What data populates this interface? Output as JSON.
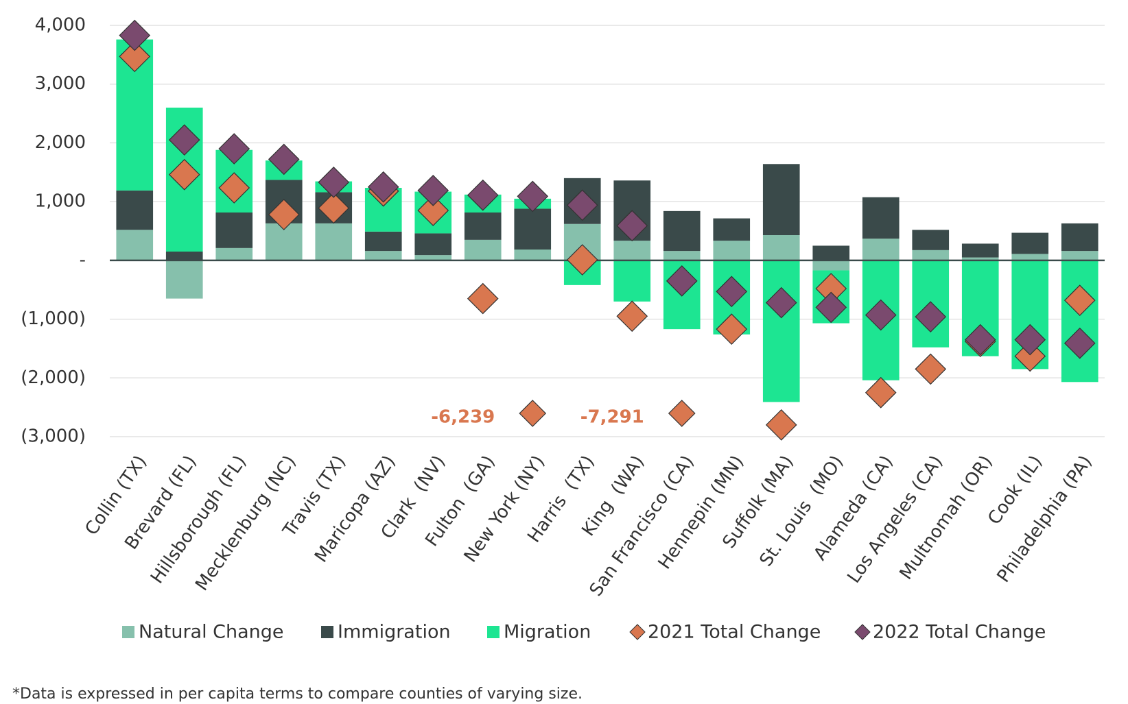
{
  "chart_data": {
    "type": "stacked_bar_marker",
    "categories": [
      "Collin (TX)",
      "Brevard (FL)",
      "Hillsborough (FL)",
      "Mecklenburg (NC)",
      "Travis (TX)",
      "Maricopa (AZ)",
      "Clark  (NV)",
      "Fulton  (GA)",
      "New York (NY)",
      "Harris  (TX)",
      "King  (WA)",
      "San Francisco (CA)",
      "Hennepin (MN)",
      "Suffolk (MA)",
      "St. Louis  (MO)",
      "Alameda (CA)",
      "Los Angeles (CA)",
      "Multnomah (OR)",
      "Cook (IL)",
      "Philadelphia (PA)"
    ],
    "series": [
      {
        "name": "Natural Change",
        "color": "#86c0ac",
        "kind": "bar",
        "values": [
          520,
          -650,
          210,
          630,
          630,
          160,
          90,
          350,
          185,
          620,
          335,
          160,
          335,
          430,
          -170,
          370,
          175,
          50,
          110,
          160
        ]
      },
      {
        "name": "Immigration",
        "color": "#3a4a4a",
        "kind": "bar",
        "values": [
          670,
          150,
          605,
          740,
          530,
          330,
          370,
          465,
          695,
          780,
          1025,
          680,
          380,
          1210,
          250,
          705,
          345,
          235,
          360,
          470
        ]
      },
      {
        "name": "Migration",
        "color": "#1de592",
        "kind": "bar",
        "values": [
          2570,
          2450,
          1065,
          330,
          185,
          745,
          710,
          305,
          170,
          -420,
          -700,
          -1170,
          -1260,
          -2410,
          -900,
          -2040,
          -1480,
          -1630,
          -1850,
          -2070
        ]
      },
      {
        "name": "2021 Total Change",
        "color": "#d9774f",
        "kind": "marker",
        "values": [
          3470,
          1460,
          1235,
          780,
          890,
          1180,
          850,
          -650,
          -6239,
          10,
          -950,
          -7291,
          -1170,
          -2800,
          -480,
          -2250,
          -1850,
          -1380,
          -1630,
          -680
        ],
        "value_labels": [
          null,
          null,
          null,
          null,
          null,
          null,
          null,
          null,
          "-6,239",
          null,
          null,
          "-7,291",
          null,
          null,
          null,
          null,
          null,
          null,
          null,
          null
        ]
      },
      {
        "name": "2022 Total Change",
        "color": "#7a4a6e",
        "kind": "marker",
        "values": [
          3830,
          2050,
          1900,
          1720,
          1330,
          1250,
          1190,
          1110,
          1090,
          940,
          590,
          -350,
          -530,
          -720,
          -800,
          -930,
          -960,
          -1350,
          -1350,
          -1410
        ]
      }
    ],
    "ylim": [
      -3000,
      4000
    ],
    "yticks": [
      {
        "value": 4000,
        "label": "4,000"
      },
      {
        "value": 3000,
        "label": "3,000"
      },
      {
        "value": 2000,
        "label": "2,000"
      },
      {
        "value": 1000,
        "label": "1,000"
      },
      {
        "value": 0,
        "label": "-"
      },
      {
        "value": -1000,
        "label": "(1,000)"
      },
      {
        "value": -2000,
        "label": "(2,000)"
      },
      {
        "value": -3000,
        "label": "(3,000)"
      }
    ],
    "grid": true,
    "footnote": "*Data is expressed in per capita terms to compare counties of varying size."
  }
}
